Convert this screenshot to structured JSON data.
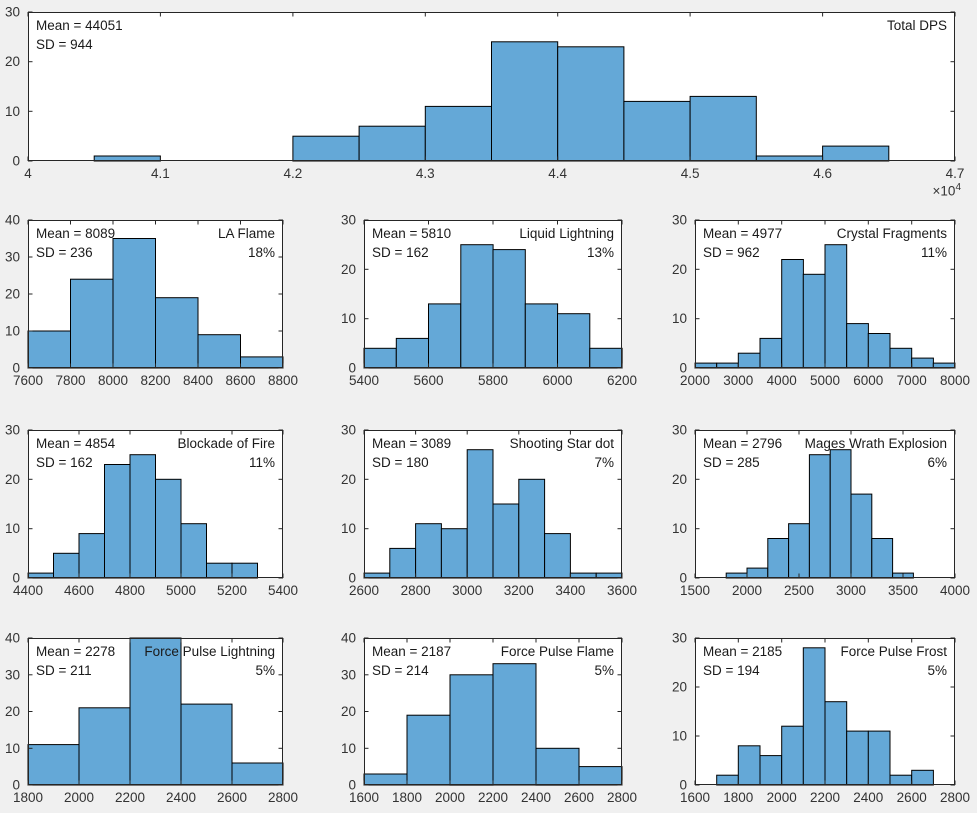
{
  "figure": {
    "background": "#F0F0F0",
    "plot_background": "#FFFFFF",
    "bar_fill": "#64A8D7",
    "bar_edge": "#000000",
    "axis_color": "#262626",
    "tick_label_color": "#333333"
  },
  "chart_data": [
    {
      "type": "bar",
      "subtype": "histogram",
      "title": "Total DPS",
      "mean_label": "Mean = 44051",
      "sd_label": "SD = 944",
      "percent": "",
      "exponent_base": "×10",
      "exponent_power": "4",
      "xlim": [
        40000,
        47000
      ],
      "ylim": [
        0,
        30
      ],
      "bin_start": 40500,
      "bin_width": 500,
      "counts": [
        1,
        0,
        0,
        5,
        7,
        11,
        24,
        23,
        12,
        13,
        1,
        3
      ],
      "xtick_values": [
        40000,
        41000,
        42000,
        43000,
        44000,
        45000,
        46000,
        47000
      ],
      "xtick_labels": [
        "4",
        "4.1",
        "4.2",
        "4.3",
        "4.4",
        "4.5",
        "4.6",
        "4.7"
      ],
      "yticks": [
        0,
        10,
        20,
        30
      ]
    },
    {
      "type": "bar",
      "subtype": "histogram",
      "title": "LA Flame",
      "mean_label": "Mean = 8089",
      "sd_label": "SD = 236",
      "percent": "18%",
      "xlim": [
        7600,
        8800
      ],
      "ylim": [
        0,
        40
      ],
      "bin_start": 7600,
      "bin_width": 200,
      "counts": [
        10,
        24,
        35,
        19,
        9,
        3
      ],
      "xtick_values": [
        7600,
        7800,
        8000,
        8200,
        8400,
        8600,
        8800
      ],
      "xtick_labels": [
        "7600",
        "7800",
        "8000",
        "8200",
        "8400",
        "8600",
        "8800"
      ],
      "yticks": [
        0,
        10,
        20,
        30,
        40
      ]
    },
    {
      "type": "bar",
      "subtype": "histogram",
      "title": "Liquid Lightning",
      "mean_label": "Mean = 5810",
      "sd_label": "SD = 162",
      "percent": "13%",
      "xlim": [
        5400,
        6200
      ],
      "ylim": [
        0,
        30
      ],
      "bin_start": 5400,
      "bin_width": 100,
      "counts": [
        4,
        6,
        13,
        25,
        24,
        13,
        11,
        4
      ],
      "xtick_values": [
        5400,
        5600,
        5800,
        6000,
        6200
      ],
      "xtick_labels": [
        "5400",
        "5600",
        "5800",
        "6000",
        "6200"
      ],
      "yticks": [
        0,
        10,
        20,
        30
      ]
    },
    {
      "type": "bar",
      "subtype": "histogram",
      "title": "Crystal Fragments",
      "mean_label": "Mean = 4977",
      "sd_label": "SD = 962",
      "percent": "11%",
      "xlim": [
        2000,
        8000
      ],
      "ylim": [
        0,
        30
      ],
      "bin_start": 2000,
      "bin_width": 500,
      "counts": [
        1,
        1,
        3,
        6,
        22,
        19,
        25,
        9,
        7,
        4,
        2,
        1
      ],
      "xtick_values": [
        2000,
        3000,
        4000,
        5000,
        6000,
        7000,
        8000
      ],
      "xtick_labels": [
        "2000",
        "3000",
        "4000",
        "5000",
        "6000",
        "7000",
        "8000"
      ],
      "yticks": [
        0,
        10,
        20,
        30
      ]
    },
    {
      "type": "bar",
      "subtype": "histogram",
      "title": "Blockade of Fire",
      "mean_label": "Mean = 4854",
      "sd_label": "SD = 162",
      "percent": "11%",
      "xlim": [
        4400,
        5400
      ],
      "ylim": [
        0,
        30
      ],
      "bin_start": 4400,
      "bin_width": 100,
      "counts": [
        1,
        5,
        9,
        23,
        25,
        20,
        11,
        3,
        3
      ],
      "xtick_values": [
        4400,
        4600,
        4800,
        5000,
        5200,
        5400
      ],
      "xtick_labels": [
        "4400",
        "4600",
        "4800",
        "5000",
        "5200",
        "5400"
      ],
      "yticks": [
        0,
        10,
        20,
        30
      ]
    },
    {
      "type": "bar",
      "subtype": "histogram",
      "title": "Shooting Star dot",
      "mean_label": "Mean = 3089",
      "sd_label": "SD = 180",
      "percent": "7%",
      "xlim": [
        2600,
        3600
      ],
      "ylim": [
        0,
        30
      ],
      "bin_start": 2600,
      "bin_width": 100,
      "counts": [
        1,
        6,
        11,
        10,
        26,
        15,
        20,
        9,
        1,
        1
      ],
      "xtick_values": [
        2600,
        2800,
        3000,
        3200,
        3400,
        3600
      ],
      "xtick_labels": [
        "2600",
        "2800",
        "3000",
        "3200",
        "3400",
        "3600"
      ],
      "yticks": [
        0,
        10,
        20,
        30
      ]
    },
    {
      "type": "bar",
      "subtype": "histogram",
      "title": "Mages Wrath Explosion",
      "mean_label": "Mean = 2796",
      "sd_label": "SD = 285",
      "percent": "6%",
      "xlim": [
        1500,
        4000
      ],
      "ylim": [
        0,
        30
      ],
      "bin_start": 1800,
      "bin_width": 200,
      "counts": [
        1,
        2,
        8,
        11,
        25,
        26,
        17,
        8,
        1
      ],
      "xtick_values": [
        1500,
        2000,
        2500,
        3000,
        3500,
        4000
      ],
      "xtick_labels": [
        "1500",
        "2000",
        "2500",
        "3000",
        "3500",
        "4000"
      ],
      "yticks": [
        0,
        10,
        20,
        30
      ]
    },
    {
      "type": "bar",
      "subtype": "histogram",
      "title": "Force Pulse Lightning",
      "mean_label": "Mean = 2278",
      "sd_label": "SD = 211",
      "percent": "5%",
      "xlim": [
        1800,
        2800
      ],
      "ylim": [
        0,
        40
      ],
      "bin_start": 1800,
      "bin_width": 200,
      "counts": [
        11,
        21,
        40,
        22,
        6
      ],
      "xtick_values": [
        1800,
        2000,
        2200,
        2400,
        2600,
        2800
      ],
      "xtick_labels": [
        "1800",
        "2000",
        "2200",
        "2400",
        "2600",
        "2800"
      ],
      "yticks": [
        0,
        10,
        20,
        30,
        40
      ]
    },
    {
      "type": "bar",
      "subtype": "histogram",
      "title": "Force Pulse Flame",
      "mean_label": "Mean = 2187",
      "sd_label": "SD = 214",
      "percent": "5%",
      "xlim": [
        1600,
        2800
      ],
      "ylim": [
        0,
        40
      ],
      "bin_start": 1600,
      "bin_width": 200,
      "counts": [
        3,
        19,
        30,
        33,
        10,
        5
      ],
      "xtick_values": [
        1600,
        1800,
        2000,
        2200,
        2400,
        2600,
        2800
      ],
      "xtick_labels": [
        "1600",
        "1800",
        "2000",
        "2200",
        "2400",
        "2600",
        "2800"
      ],
      "yticks": [
        0,
        10,
        20,
        30,
        40
      ]
    },
    {
      "type": "bar",
      "subtype": "histogram",
      "title": "Force Pulse Frost",
      "mean_label": "Mean = 2185",
      "sd_label": "SD = 194",
      "percent": "5%",
      "xlim": [
        1600,
        2800
      ],
      "ylim": [
        0,
        30
      ],
      "bin_start": 1700,
      "bin_width": 100,
      "counts": [
        2,
        8,
        6,
        12,
        28,
        17,
        11,
        11,
        2,
        3
      ],
      "xtick_values": [
        1600,
        1800,
        2000,
        2200,
        2400,
        2600,
        2800
      ],
      "xtick_labels": [
        "1600",
        "1800",
        "2000",
        "2200",
        "2400",
        "2600",
        "2800"
      ],
      "yticks": [
        0,
        10,
        20,
        30
      ]
    }
  ]
}
